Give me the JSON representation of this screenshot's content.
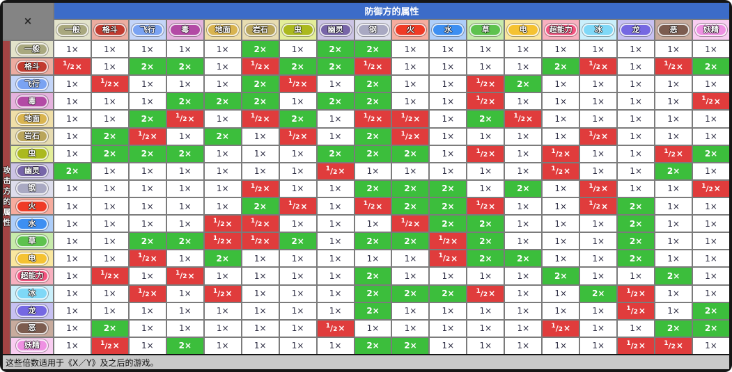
{
  "window": {
    "close_label": "×"
  },
  "headers": {
    "defender": "防御方的属性",
    "attacker": "攻击方的属性"
  },
  "footer": {
    "note": "这些倍数适用于《X／Y》及之后的游戏。"
  },
  "colors": {
    "frame": "#161616",
    "grid_line": "#7b7b7b",
    "corner_bg": "#848484",
    "defender_bar_bg": "#3C6CC8",
    "attacker_strip_bg": "#A34444",
    "note_bg": "#C9C9C9",
    "cell_1x_bg": "#FFFFFF",
    "cell_2x_bg": "#3CBE3C",
    "cell_half_bg": "#E03C3C"
  },
  "types": [
    {
      "name": "一般",
      "en": "normal",
      "color": "#A9A87F",
      "tint": "#E3E3CB"
    },
    {
      "name": "格斗",
      "en": "fighting",
      "color": "#C23B30",
      "tint": "#ECACA0"
    },
    {
      "name": "飞行",
      "en": "flying",
      "color": "#7AA3F2",
      "tint": "#C4D5F8"
    },
    {
      "name": "毒",
      "en": "poison",
      "color": "#B34AA5",
      "tint": "#E5B3DE"
    },
    {
      "name": "地面",
      "en": "ground",
      "color": "#D9B450",
      "tint": "#F0DFA8"
    },
    {
      "name": "岩石",
      "en": "rock",
      "color": "#B9A55B",
      "tint": "#E7DCB1"
    },
    {
      "name": "虫",
      "en": "bug",
      "color": "#ABB91F",
      "tint": "#E4EE9A"
    },
    {
      "name": "幽灵",
      "en": "ghost",
      "color": "#7765A8",
      "tint": "#CCC4E5"
    },
    {
      "name": "钢",
      "en": "steel",
      "color": "#A9A9C2",
      "tint": "#DEDEEC"
    },
    {
      "name": "火",
      "en": "fire",
      "color": "#EF3B26",
      "tint": "#F6AC9E"
    },
    {
      "name": "水",
      "en": "water",
      "color": "#3D8FF2",
      "tint": "#AECEF9"
    },
    {
      "name": "草",
      "en": "grass",
      "color": "#5EC24E",
      "tint": "#C7EBAB"
    },
    {
      "name": "电",
      "en": "electric",
      "color": "#F5C232",
      "tint": "#FAE79F"
    },
    {
      "name": "超能力",
      "en": "psychic",
      "color": "#F2537F",
      "tint": "#F8B0BF"
    },
    {
      "name": "冰",
      "en": "ice",
      "color": "#7FD8F7",
      "tint": "#CAEFFB"
    },
    {
      "name": "龙",
      "en": "dragon",
      "color": "#7568E2",
      "tint": "#C7C1F2"
    },
    {
      "name": "恶",
      "en": "dark",
      "color": "#7C5C4F",
      "tint": "#C8AB9D"
    },
    {
      "name": "妖精",
      "en": "fairy",
      "color": "#EE90E2",
      "tint": "#F9CDF1"
    }
  ],
  "chart_data": {
    "type": "table",
    "x_axis_label": "防御方的属性",
    "y_axis_label": "攻击方的属性",
    "defender_types": [
      "一般",
      "格斗",
      "飞行",
      "毒",
      "地面",
      "岩石",
      "虫",
      "幽灵",
      "钢",
      "火",
      "水",
      "草",
      "电",
      "超能力",
      "冰",
      "龙",
      "恶",
      "妖精"
    ],
    "attacker_types": [
      "一般",
      "格斗",
      "飞行",
      "毒",
      "地面",
      "岩石",
      "虫",
      "幽灵",
      "钢",
      "火",
      "水",
      "草",
      "电",
      "超能力",
      "冰",
      "龙",
      "恶",
      "妖精"
    ],
    "legend": {
      "1×": "#FFFFFF",
      "2×": "#3CBE3C",
      "½×": "#E03C3C"
    },
    "multipliers": [
      [
        "1×",
        "1×",
        "1×",
        "1×",
        "1×",
        "2×",
        "1×",
        "2×",
        "2×",
        "1×",
        "1×",
        "1×",
        "1×",
        "1×",
        "1×",
        "1×",
        "1×",
        "1×"
      ],
      [
        "½×",
        "1×",
        "2×",
        "2×",
        "1×",
        "½×",
        "2×",
        "2×",
        "½×",
        "1×",
        "1×",
        "1×",
        "1×",
        "2×",
        "½×",
        "1×",
        "½×",
        "2×"
      ],
      [
        "1×",
        "½×",
        "1×",
        "1×",
        "1×",
        "2×",
        "½×",
        "1×",
        "2×",
        "1×",
        "1×",
        "½×",
        "2×",
        "1×",
        "1×",
        "1×",
        "1×",
        "1×"
      ],
      [
        "1×",
        "1×",
        "1×",
        "2×",
        "2×",
        "2×",
        "1×",
        "2×",
        "2×",
        "1×",
        "1×",
        "½×",
        "1×",
        "1×",
        "1×",
        "1×",
        "1×",
        "½×"
      ],
      [
        "1×",
        "1×",
        "2×",
        "½×",
        "1×",
        "½×",
        "2×",
        "1×",
        "½×",
        "½×",
        "1×",
        "2×",
        "½×",
        "1×",
        "1×",
        "1×",
        "1×",
        "1×"
      ],
      [
        "1×",
        "2×",
        "½×",
        "1×",
        "2×",
        "1×",
        "½×",
        "1×",
        "2×",
        "½×",
        "1×",
        "1×",
        "1×",
        "1×",
        "½×",
        "1×",
        "1×",
        "1×"
      ],
      [
        "1×",
        "2×",
        "2×",
        "2×",
        "1×",
        "1×",
        "1×",
        "2×",
        "2×",
        "2×",
        "1×",
        "½×",
        "1×",
        "½×",
        "1×",
        "1×",
        "½×",
        "2×"
      ],
      [
        "2×",
        "1×",
        "1×",
        "1×",
        "1×",
        "1×",
        "1×",
        "½×",
        "1×",
        "1×",
        "1×",
        "1×",
        "1×",
        "½×",
        "1×",
        "1×",
        "2×",
        "1×"
      ],
      [
        "1×",
        "1×",
        "1×",
        "1×",
        "1×",
        "½×",
        "1×",
        "1×",
        "2×",
        "2×",
        "2×",
        "1×",
        "2×",
        "1×",
        "½×",
        "1×",
        "1×",
        "½×"
      ],
      [
        "1×",
        "1×",
        "1×",
        "1×",
        "1×",
        "2×",
        "½×",
        "1×",
        "½×",
        "2×",
        "2×",
        "½×",
        "1×",
        "1×",
        "½×",
        "2×",
        "1×",
        "1×"
      ],
      [
        "1×",
        "1×",
        "1×",
        "1×",
        "½×",
        "½×",
        "1×",
        "1×",
        "1×",
        "½×",
        "2×",
        "2×",
        "1×",
        "1×",
        "1×",
        "2×",
        "1×",
        "1×"
      ],
      [
        "1×",
        "1×",
        "2×",
        "2×",
        "½×",
        "½×",
        "2×",
        "1×",
        "2×",
        "2×",
        "½×",
        "2×",
        "1×",
        "1×",
        "1×",
        "2×",
        "1×",
        "1×"
      ],
      [
        "1×",
        "1×",
        "½×",
        "1×",
        "2×",
        "1×",
        "1×",
        "1×",
        "1×",
        "1×",
        "½×",
        "2×",
        "2×",
        "1×",
        "1×",
        "2×",
        "1×",
        "1×"
      ],
      [
        "1×",
        "½×",
        "1×",
        "½×",
        "1×",
        "1×",
        "1×",
        "1×",
        "2×",
        "1×",
        "1×",
        "1×",
        "1×",
        "2×",
        "1×",
        "1×",
        "2×",
        "1×"
      ],
      [
        "1×",
        "1×",
        "½×",
        "1×",
        "½×",
        "1×",
        "1×",
        "1×",
        "2×",
        "2×",
        "2×",
        "½×",
        "1×",
        "1×",
        "2×",
        "½×",
        "1×",
        "1×"
      ],
      [
        "1×",
        "1×",
        "1×",
        "1×",
        "1×",
        "1×",
        "1×",
        "1×",
        "2×",
        "1×",
        "1×",
        "1×",
        "1×",
        "1×",
        "1×",
        "½×",
        "1×",
        "2×"
      ],
      [
        "1×",
        "2×",
        "1×",
        "1×",
        "1×",
        "1×",
        "1×",
        "½×",
        "1×",
        "1×",
        "1×",
        "1×",
        "1×",
        "½×",
        "1×",
        "1×",
        "2×",
        "2×"
      ],
      [
        "1×",
        "½×",
        "1×",
        "2×",
        "1×",
        "1×",
        "1×",
        "1×",
        "2×",
        "2×",
        "1×",
        "1×",
        "1×",
        "1×",
        "1×",
        "½×",
        "½×",
        "1×"
      ]
    ]
  }
}
